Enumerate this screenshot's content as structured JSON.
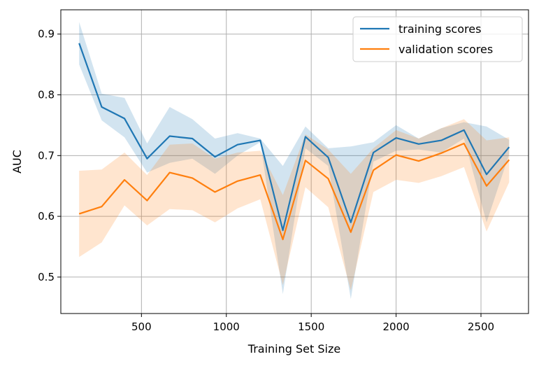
{
  "chart_data": {
    "type": "line",
    "title": "",
    "xlabel": "Training Set Size",
    "ylabel": "AUC",
    "xlim": [
      25,
      2780
    ],
    "ylim": [
      0.44,
      0.94
    ],
    "xticks": [
      500,
      1000,
      1500,
      2000,
      2500
    ],
    "yticks": [
      0.5,
      0.6,
      0.7,
      0.8,
      0.9
    ],
    "xtick_labels": [
      "500",
      "1000",
      "1500",
      "2000",
      "2500"
    ],
    "ytick_labels": [
      "0.5",
      "0.6",
      "0.7",
      "0.8",
      "0.9"
    ],
    "grid": true,
    "legend_position": "top-right",
    "x": [
      133,
      266,
      400,
      533,
      666,
      800,
      933,
      1066,
      1200,
      1333,
      1466,
      1600,
      1733,
      1866,
      2000,
      2133,
      2266,
      2400,
      2533,
      2666
    ],
    "series": [
      {
        "name": "training scores",
        "color": "#1f77b4",
        "values": [
          0.885,
          0.78,
          0.761,
          0.695,
          0.732,
          0.728,
          0.698,
          0.718,
          0.725,
          0.577,
          0.731,
          0.697,
          0.59,
          0.705,
          0.729,
          0.719,
          0.725,
          0.742,
          0.669,
          0.714
        ],
        "upper": [
          0.92,
          0.802,
          0.795,
          0.72,
          0.78,
          0.76,
          0.728,
          0.737,
          0.728,
          0.683,
          0.748,
          0.712,
          0.715,
          0.722,
          0.75,
          0.728,
          0.745,
          0.755,
          0.748,
          0.726
        ],
        "lower": [
          0.85,
          0.758,
          0.73,
          0.672,
          0.688,
          0.695,
          0.67,
          0.7,
          0.722,
          0.472,
          0.712,
          0.683,
          0.464,
          0.69,
          0.708,
          0.71,
          0.705,
          0.728,
          0.59,
          0.702
        ]
      },
      {
        "name": "validation scores",
        "color": "#ff7f0e",
        "values": [
          0.604,
          0.616,
          0.66,
          0.626,
          0.672,
          0.663,
          0.64,
          0.658,
          0.668,
          0.562,
          0.692,
          0.662,
          0.574,
          0.676,
          0.701,
          0.691,
          0.704,
          0.72,
          0.65,
          0.693
        ],
        "upper": [
          0.675,
          0.677,
          0.705,
          0.668,
          0.718,
          0.72,
          0.695,
          0.705,
          0.708,
          0.635,
          0.735,
          0.71,
          0.67,
          0.712,
          0.742,
          0.728,
          0.745,
          0.76,
          0.725,
          0.73
        ],
        "lower": [
          0.533,
          0.557,
          0.618,
          0.585,
          0.612,
          0.61,
          0.59,
          0.613,
          0.628,
          0.487,
          0.648,
          0.615,
          0.478,
          0.64,
          0.66,
          0.655,
          0.666,
          0.681,
          0.575,
          0.656
        ]
      }
    ]
  }
}
